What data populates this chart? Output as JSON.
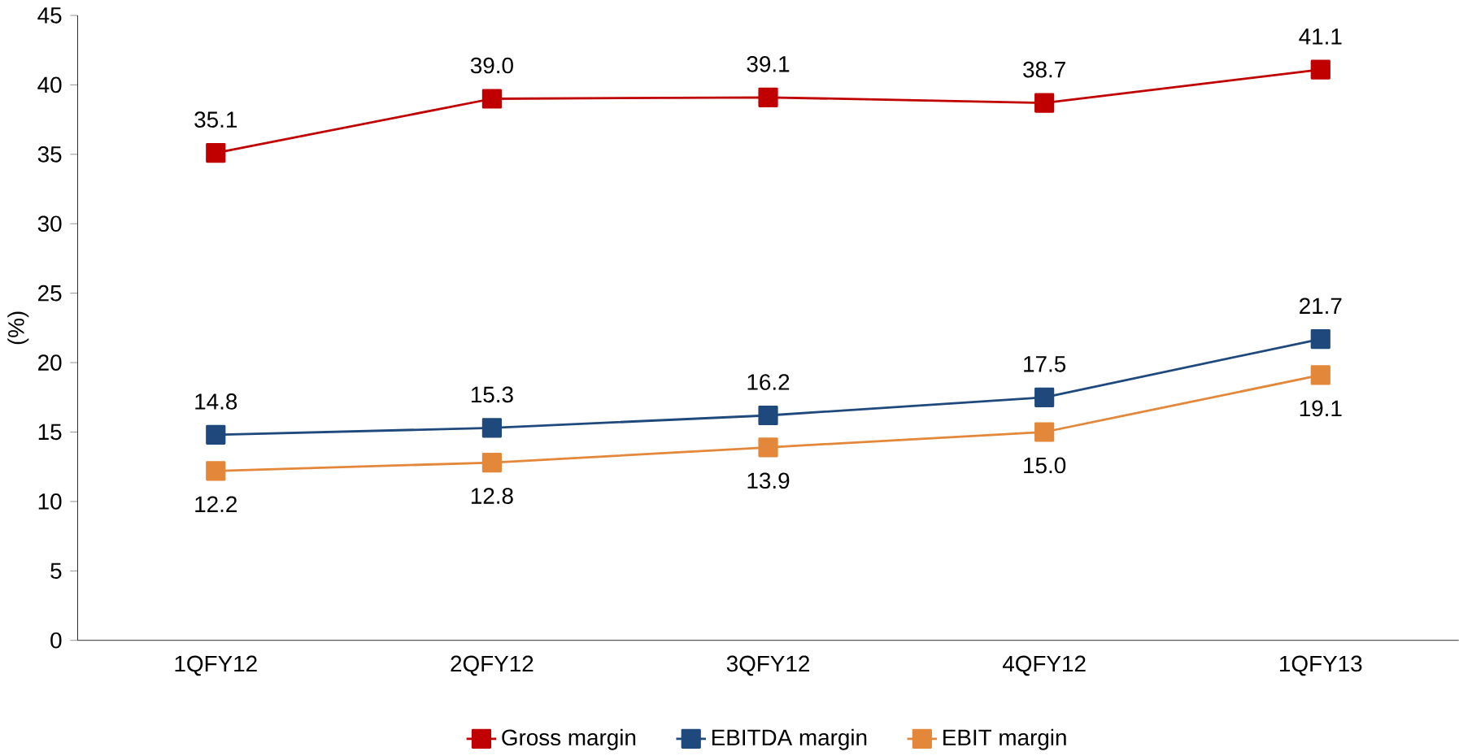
{
  "chart_data": {
    "type": "line",
    "ylabel": "(%)",
    "categories": [
      "1QFY12",
      "2QFY12",
      "3QFY12",
      "4QFY12",
      "1QFY13"
    ],
    "series": [
      {
        "name": "Gross margin",
        "color": "#c00000",
        "values": [
          35.1,
          39.0,
          39.1,
          38.7,
          41.1
        ],
        "value_labels": [
          "35.1",
          "39.0",
          "39.1",
          "38.7",
          "41.1"
        ]
      },
      {
        "name": "EBITDA margin",
        "color": "#1f497d",
        "values": [
          14.8,
          15.3,
          16.2,
          17.5,
          21.7
        ],
        "value_labels": [
          "14.8",
          "15.3",
          "16.2",
          "17.5",
          "21.7"
        ]
      },
      {
        "name": "EBIT margin",
        "color": "#e3873a",
        "values": [
          12.2,
          12.8,
          13.9,
          15.0,
          19.1
        ],
        "value_labels": [
          "12.2",
          "12.8",
          "13.9",
          "15.0",
          "19.1"
        ]
      }
    ],
    "ylim": [
      0,
      45
    ],
    "yticks": [
      0,
      5,
      10,
      15,
      20,
      25,
      30,
      35,
      40,
      45
    ],
    "grid": false,
    "legend": "bottom",
    "marker": "square",
    "line_style": "solid"
  }
}
